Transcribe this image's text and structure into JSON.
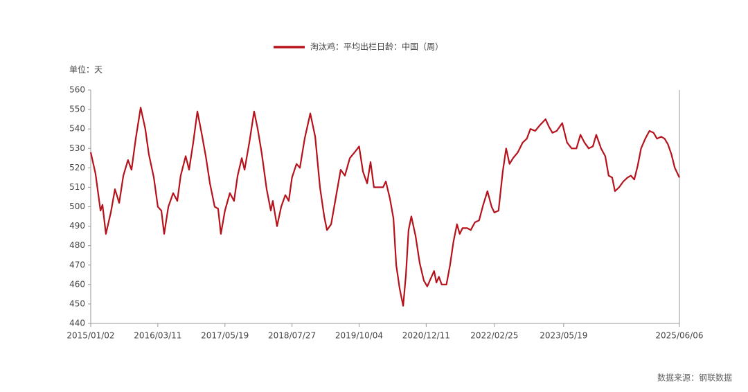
{
  "chart_data": {
    "type": "line",
    "unit_label": "单位：天",
    "source": "数据来源：钢联数据",
    "x": [
      "2015/01/02",
      "2015/02/02",
      "2015/03/06",
      "2015/03/19",
      "2015/04/10",
      "2015/05/12",
      "2015/06/08",
      "2015/07/05",
      "2015/08/01",
      "2015/08/31",
      "2015/09/23",
      "2015/10/20",
      "2015/11/21",
      "2015/12/21",
      "2016/01/13",
      "2016/02/14",
      "2016/03/11",
      "2016/04/03",
      "2016/04/21",
      "2016/05/18",
      "2016/06/18",
      "2016/07/15",
      "2016/08/06",
      "2016/09/07",
      "2016/09/29",
      "2016/10/26",
      "2016/11/22",
      "2016/12/19",
      "2017/01/15",
      "2017/02/11",
      "2017/03/14",
      "2017/04/05",
      "2017/04/23",
      "2017/05/19",
      "2017/06/20",
      "2017/07/17",
      "2017/08/09",
      "2017/09/05",
      "2017/09/23",
      "2017/10/24",
      "2017/11/24",
      "2017/12/17",
      "2018/01/13",
      "2018/02/13",
      "2018/03/12",
      "2018/03/25",
      "2018/04/21",
      "2018/05/18",
      "2018/06/14",
      "2018/07/06",
      "2018/07/27",
      "2018/08/25",
      "2018/09/16",
      "2018/10/17",
      "2018/11/22",
      "2018/12/24",
      "2019/01/24",
      "2019/02/20",
      "2019/03/10",
      "2019/04/06",
      "2019/05/07",
      "2019/06/07",
      "2019/07/04",
      "2019/08/05",
      "2019/09/05",
      "2019/10/04",
      "2019/10/29",
      "2019/11/25",
      "2019/12/17",
      "2020/01/08",
      "2020/02/09",
      "2020/03/07",
      "2020/03/25",
      "2020/04/21",
      "2020/05/13",
      "2020/05/31",
      "2020/06/22",
      "2020/07/15",
      "2020/08/02",
      "2020/08/19",
      "2020/09/06",
      "2020/10/03",
      "2020/10/30",
      "2020/11/26",
      "2020/12/18",
      "2021/01/09",
      "2021/01/31",
      "2021/02/15",
      "2021/03/03",
      "2021/03/21",
      "2021/04/21",
      "2021/05/14",
      "2021/06/05",
      "2021/06/28",
      "2021/07/16",
      "2021/08/03",
      "2021/09/03",
      "2021/09/25",
      "2021/10/22",
      "2021/11/18",
      "2021/12/15",
      "2022/01/11",
      "2022/02/07",
      "2022/02/25",
      "2022/03/24",
      "2022/04/20",
      "2022/05/12",
      "2022/06/03",
      "2022/06/26",
      "2022/07/27",
      "2022/08/27",
      "2022/09/23",
      "2022/10/16",
      "2022/11/16",
      "2022/12/17",
      "2023/01/22",
      "2023/02/14",
      "2023/03/08",
      "2023/04/04",
      "2023/05/10",
      "2023/06/10",
      "2023/07/10",
      "2023/08/10",
      "2023/09/05",
      "2023/10/01",
      "2023/10/28",
      "2023/11/24",
      "2023/12/16",
      "2024/01/16",
      "2024/02/12",
      "2024/03/05",
      "2024/03/28",
      "2024/04/15",
      "2024/05/12",
      "2024/06/08",
      "2024/07/05",
      "2024/07/27",
      "2024/08/18",
      "2024/09/09",
      "2024/10/01",
      "2024/10/28",
      "2024/11/24",
      "2024/12/21",
      "2025/01/12",
      "2025/02/08",
      "2025/03/02",
      "2025/03/24",
      "2025/04/15",
      "2025/05/07",
      "2025/06/06"
    ],
    "series": [
      {
        "name": "淘汰鸡：平均出栏日龄：中国（周）",
        "color": "#b5121b",
        "values": [
          528,
          517,
          498,
          501,
          486,
          497,
          509,
          502,
          516,
          524,
          519,
          535,
          551,
          540,
          527,
          515,
          500,
          498,
          486,
          500,
          507,
          503,
          516,
          526,
          519,
          533,
          549,
          538,
          526,
          512,
          500,
          499,
          486,
          498,
          507,
          503,
          516,
          525,
          519,
          533,
          549,
          540,
          527,
          509,
          498,
          503,
          490,
          500,
          506,
          503,
          515,
          522,
          520,
          535,
          548,
          536,
          510,
          495,
          488,
          491,
          505,
          519,
          516,
          525,
          528,
          531,
          518,
          512,
          523,
          510,
          510,
          510,
          513,
          504,
          494,
          470,
          458,
          449,
          465,
          488,
          495,
          485,
          471,
          462,
          459,
          463,
          467,
          461,
          464,
          460,
          460,
          470,
          482,
          491,
          486,
          489,
          489,
          488,
          492,
          493,
          501,
          508,
          500,
          497,
          498,
          518,
          530,
          522,
          525,
          528,
          533,
          535,
          540,
          539,
          542,
          545,
          541,
          538,
          539,
          543,
          533,
          530,
          530,
          537,
          533,
          530,
          531,
          537,
          530,
          526,
          516,
          515,
          508,
          510,
          513,
          515,
          516,
          514,
          521,
          530,
          535,
          539,
          538,
          535,
          536,
          535,
          532,
          527,
          520,
          515
        ]
      }
    ],
    "xlim": [
      "2015/01/02",
      "2025/06/06"
    ],
    "xticks": [
      "2015/01/02",
      "2016/03/11",
      "2017/05/19",
      "2018/07/27",
      "2019/10/04",
      "2020/12/11",
      "2022/02/25",
      "2023/05/19",
      "2025/06/06"
    ],
    "ylim": [
      440,
      560
    ],
    "yticks": [
      440,
      450,
      460,
      470,
      480,
      490,
      500,
      510,
      520,
      530,
      540,
      550,
      560
    ],
    "legend": "top"
  }
}
